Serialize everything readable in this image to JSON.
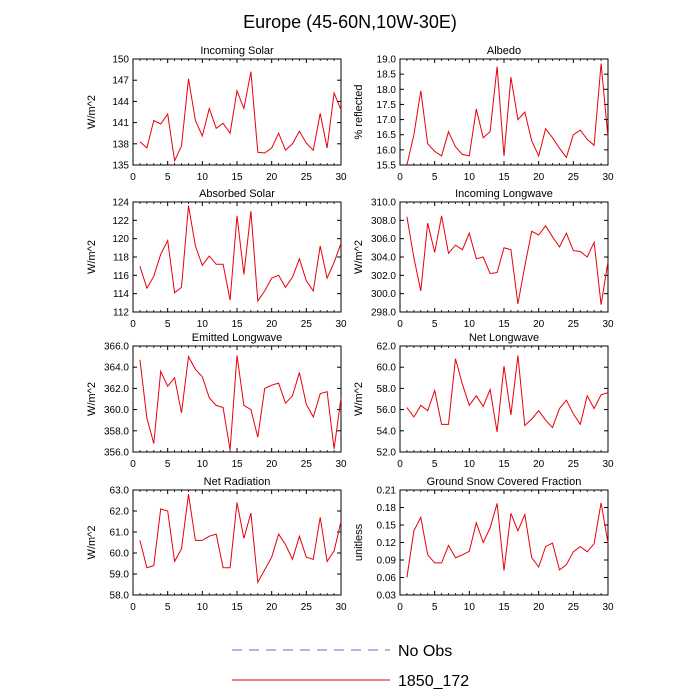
{
  "figure_title": "Europe (45-60N,10W-30E)",
  "legend": {
    "entries": [
      {
        "label": "No Obs",
        "color": "#6a6ad0",
        "style": "dashed"
      },
      {
        "label": "1850_172",
        "color": "#e8000b",
        "style": "solid"
      }
    ]
  },
  "chart_data": [
    {
      "type": "line",
      "title": "Incoming Solar",
      "xlabel": "",
      "ylabel": "W/m^2",
      "xlim": [
        0,
        30
      ],
      "ylim": [
        135,
        150
      ],
      "xticks": [
        0,
        5,
        10,
        15,
        20,
        25,
        30
      ],
      "xtick_labels": [
        "0",
        "5",
        "10",
        "15",
        "20",
        "25",
        "30"
      ],
      "yticks": [
        135,
        138,
        141,
        144,
        147,
        150
      ],
      "ytick_labels": [
        "135",
        "138",
        "141",
        "144",
        "147",
        "150"
      ],
      "x": [
        1,
        2,
        3,
        4,
        5,
        6,
        7,
        8,
        9,
        10,
        11,
        12,
        13,
        14,
        15,
        16,
        17,
        18,
        19,
        20,
        21,
        22,
        23,
        24,
        25,
        26,
        27,
        28,
        29,
        30
      ],
      "series": [
        {
          "name": "1850_172",
          "color": "#e8000b",
          "values": [
            138.3,
            137.4,
            141.3,
            140.8,
            142.2,
            135.6,
            137.7,
            147.2,
            141.3,
            139.1,
            143.0,
            140.2,
            140.9,
            139.5,
            145.5,
            143.0,
            148.2,
            136.8,
            136.7,
            137.4,
            139.5,
            137.1,
            138.0,
            139.8,
            138.1,
            137.1,
            142.3,
            137.4,
            145.2,
            142.8
          ]
        }
      ]
    },
    {
      "type": "line",
      "title": "Albedo",
      "xlabel": "",
      "ylabel": "% reflected",
      "xlim": [
        0,
        30
      ],
      "ylim": [
        15.5,
        19.0
      ],
      "xticks": [
        0,
        5,
        10,
        15,
        20,
        25,
        30
      ],
      "xtick_labels": [
        "0",
        "5",
        "10",
        "15",
        "20",
        "25",
        "30"
      ],
      "yticks": [
        15.5,
        16.0,
        16.5,
        17.0,
        17.5,
        18.0,
        18.5,
        19.0
      ],
      "ytick_labels": [
        "15.5",
        "16.0",
        "16.5",
        "17.0",
        "17.5",
        "18.0",
        "18.5",
        "19.0"
      ],
      "x": [
        1,
        2,
        3,
        4,
        5,
        6,
        7,
        8,
        9,
        10,
        11,
        12,
        13,
        14,
        15,
        16,
        17,
        18,
        19,
        20,
        21,
        22,
        23,
        24,
        25,
        26,
        27,
        28,
        29,
        30
      ],
      "series": [
        {
          "name": "1850_172",
          "color": "#e8000b",
          "values": [
            15.5,
            16.5,
            17.95,
            16.2,
            15.95,
            15.8,
            16.6,
            16.1,
            15.85,
            15.8,
            17.35,
            16.4,
            16.6,
            18.75,
            15.8,
            18.4,
            17.0,
            17.25,
            16.3,
            15.8,
            16.7,
            16.4,
            16.05,
            15.75,
            16.5,
            16.65,
            16.35,
            16.15,
            18.85,
            16.4
          ]
        }
      ]
    },
    {
      "type": "line",
      "title": "Absorbed Solar",
      "xlabel": "",
      "ylabel": "W/m^2",
      "xlim": [
        0,
        30
      ],
      "ylim": [
        112,
        124
      ],
      "xticks": [
        0,
        5,
        10,
        15,
        20,
        25,
        30
      ],
      "xtick_labels": [
        "0",
        "5",
        "10",
        "15",
        "20",
        "25",
        "30"
      ],
      "yticks": [
        112,
        114,
        116,
        118,
        120,
        122,
        124
      ],
      "ytick_labels": [
        "112",
        "114",
        "116",
        "118",
        "120",
        "122",
        "124"
      ],
      "x": [
        1,
        2,
        3,
        4,
        5,
        6,
        7,
        8,
        9,
        10,
        11,
        12,
        13,
        14,
        15,
        16,
        17,
        18,
        19,
        20,
        21,
        22,
        23,
        24,
        25,
        26,
        27,
        28,
        29,
        30
      ],
      "series": [
        {
          "name": "1850_172",
          "color": "#e8000b",
          "values": [
            117.0,
            114.6,
            115.9,
            118.3,
            119.8,
            114.1,
            114.7,
            123.6,
            119.2,
            117.1,
            118.1,
            117.2,
            117.2,
            113.3,
            122.5,
            116.1,
            123.0,
            113.2,
            114.3,
            115.7,
            116.0,
            114.7,
            115.8,
            117.8,
            115.4,
            114.3,
            119.2,
            115.7,
            117.4,
            119.5
          ]
        }
      ]
    },
    {
      "type": "line",
      "title": "Incoming Longwave",
      "xlabel": "",
      "ylabel": "W/m^2",
      "xlim": [
        0,
        30
      ],
      "ylim": [
        298.0,
        310.0
      ],
      "xticks": [
        0,
        5,
        10,
        15,
        20,
        25,
        30
      ],
      "xtick_labels": [
        "0",
        "5",
        "10",
        "15",
        "20",
        "25",
        "30"
      ],
      "yticks": [
        298.0,
        300.0,
        302.0,
        304.0,
        306.0,
        308.0,
        310.0
      ],
      "ytick_labels": [
        "298.0",
        "300.0",
        "302.0",
        "304.0",
        "306.0",
        "308.0",
        "310.0"
      ],
      "x": [
        1,
        2,
        3,
        4,
        5,
        6,
        7,
        8,
        9,
        10,
        11,
        12,
        13,
        14,
        15,
        16,
        17,
        18,
        19,
        20,
        21,
        22,
        23,
        24,
        25,
        26,
        27,
        28,
        29,
        30
      ],
      "series": [
        {
          "name": "1850_172",
          "color": "#e8000b",
          "values": [
            308.4,
            303.9,
            300.3,
            307.7,
            304.5,
            308.5,
            304.4,
            305.3,
            304.8,
            306.6,
            303.8,
            304.0,
            302.2,
            302.3,
            305.0,
            304.8,
            298.9,
            303.0,
            306.8,
            306.4,
            307.4,
            306.2,
            305.1,
            306.6,
            304.7,
            304.6,
            304.0,
            305.6,
            298.8,
            303.5
          ]
        }
      ]
    },
    {
      "type": "line",
      "title": "Emitted Longwave",
      "xlabel": "",
      "ylabel": "W/m^2",
      "xlim": [
        0,
        30
      ],
      "ylim": [
        356.0,
        366.0
      ],
      "xticks": [
        0,
        5,
        10,
        15,
        20,
        25,
        30
      ],
      "xtick_labels": [
        "0",
        "5",
        "10",
        "15",
        "20",
        "25",
        "30"
      ],
      "yticks": [
        356.0,
        358.0,
        360.0,
        362.0,
        364.0,
        366.0
      ],
      "ytick_labels": [
        "356.0",
        "358.0",
        "360.0",
        "362.0",
        "364.0",
        "366.0"
      ],
      "x": [
        1,
        2,
        3,
        4,
        5,
        6,
        7,
        8,
        9,
        10,
        11,
        12,
        13,
        14,
        15,
        16,
        17,
        18,
        19,
        20,
        21,
        22,
        23,
        24,
        25,
        26,
        27,
        28,
        29,
        30
      ],
      "series": [
        {
          "name": "1850_172",
          "color": "#e8000b",
          "values": [
            364.7,
            359.2,
            356.8,
            363.6,
            362.2,
            363.0,
            359.7,
            365.0,
            363.8,
            363.1,
            361.1,
            360.4,
            360.2,
            356.2,
            365.1,
            360.4,
            360.0,
            357.4,
            362.0,
            362.3,
            362.5,
            360.6,
            361.3,
            363.5,
            360.5,
            359.3,
            361.5,
            361.7,
            356.3,
            361.1
          ]
        }
      ]
    },
    {
      "type": "line",
      "title": "Net Longwave",
      "xlabel": "",
      "ylabel": "W/m^2",
      "xlim": [
        0,
        30
      ],
      "ylim": [
        52.0,
        62.0
      ],
      "xticks": [
        0,
        5,
        10,
        15,
        20,
        25,
        30
      ],
      "xtick_labels": [
        "0",
        "5",
        "10",
        "15",
        "20",
        "25",
        "30"
      ],
      "yticks": [
        52.0,
        54.0,
        56.0,
        58.0,
        60.0,
        62.0
      ],
      "ytick_labels": [
        "52.0",
        "54.0",
        "56.0",
        "58.0",
        "60.0",
        "62.0"
      ],
      "x": [
        1,
        2,
        3,
        4,
        5,
        6,
        7,
        8,
        9,
        10,
        11,
        12,
        13,
        14,
        15,
        16,
        17,
        18,
        19,
        20,
        21,
        22,
        23,
        24,
        25,
        26,
        27,
        28,
        29,
        30
      ],
      "series": [
        {
          "name": "1850_172",
          "color": "#e8000b",
          "values": [
            56.2,
            55.3,
            56.4,
            55.9,
            57.8,
            54.6,
            54.6,
            60.8,
            58.4,
            56.4,
            57.3,
            56.3,
            57.9,
            53.9,
            60.1,
            55.5,
            61.1,
            54.5,
            55.1,
            55.9,
            55.0,
            54.3,
            56.1,
            56.9,
            55.6,
            54.6,
            57.3,
            56.1,
            57.4,
            57.6
          ]
        }
      ]
    },
    {
      "type": "line",
      "title": "Net Radiation",
      "xlabel": "",
      "ylabel": "W/m^2",
      "xlim": [
        0,
        30
      ],
      "ylim": [
        58.0,
        63.0
      ],
      "xticks": [
        0,
        5,
        10,
        15,
        20,
        25,
        30
      ],
      "xtick_labels": [
        "0",
        "5",
        "10",
        "15",
        "20",
        "25",
        "30"
      ],
      "yticks": [
        58.0,
        59.0,
        60.0,
        61.0,
        62.0,
        63.0
      ],
      "ytick_labels": [
        "58.0",
        "59.0",
        "60.0",
        "61.0",
        "62.0",
        "63.0"
      ],
      "x": [
        1,
        2,
        3,
        4,
        5,
        6,
        7,
        8,
        9,
        10,
        11,
        12,
        13,
        14,
        15,
        16,
        17,
        18,
        19,
        20,
        21,
        22,
        23,
        24,
        25,
        26,
        27,
        28,
        29,
        30
      ],
      "series": [
        {
          "name": "1850_172",
          "color": "#e8000b",
          "values": [
            60.6,
            59.3,
            59.4,
            62.1,
            62.0,
            59.6,
            60.2,
            62.8,
            60.6,
            60.6,
            60.8,
            60.9,
            59.3,
            59.3,
            62.4,
            60.7,
            61.9,
            58.6,
            59.2,
            59.8,
            60.9,
            60.4,
            59.7,
            60.8,
            59.8,
            59.7,
            61.7,
            59.6,
            60.1,
            61.5
          ]
        }
      ]
    },
    {
      "type": "line",
      "title": "Ground Snow Covered Fraction",
      "xlabel": "",
      "ylabel": "unitless",
      "xlim": [
        0,
        30
      ],
      "ylim": [
        0.03,
        0.21
      ],
      "xticks": [
        0,
        5,
        10,
        15,
        20,
        25,
        30
      ],
      "xtick_labels": [
        "0",
        "5",
        "10",
        "15",
        "20",
        "25",
        "30"
      ],
      "yticks": [
        0.03,
        0.06,
        0.09,
        0.12,
        0.15,
        0.18,
        0.21
      ],
      "ytick_labels": [
        "0.03",
        "0.06",
        "0.09",
        "0.12",
        "0.15",
        "0.18",
        "0.21"
      ],
      "x": [
        1,
        2,
        3,
        4,
        5,
        6,
        7,
        8,
        9,
        10,
        11,
        12,
        13,
        14,
        15,
        16,
        17,
        18,
        19,
        20,
        21,
        22,
        23,
        24,
        25,
        26,
        27,
        28,
        29,
        30
      ],
      "series": [
        {
          "name": "1850_172",
          "color": "#e8000b",
          "values": [
            0.06,
            0.14,
            0.163,
            0.099,
            0.085,
            0.085,
            0.115,
            0.094,
            0.099,
            0.105,
            0.154,
            0.12,
            0.145,
            0.187,
            0.072,
            0.17,
            0.14,
            0.168,
            0.094,
            0.078,
            0.113,
            0.119,
            0.073,
            0.082,
            0.104,
            0.113,
            0.104,
            0.118,
            0.188,
            0.119
          ]
        }
      ]
    }
  ]
}
